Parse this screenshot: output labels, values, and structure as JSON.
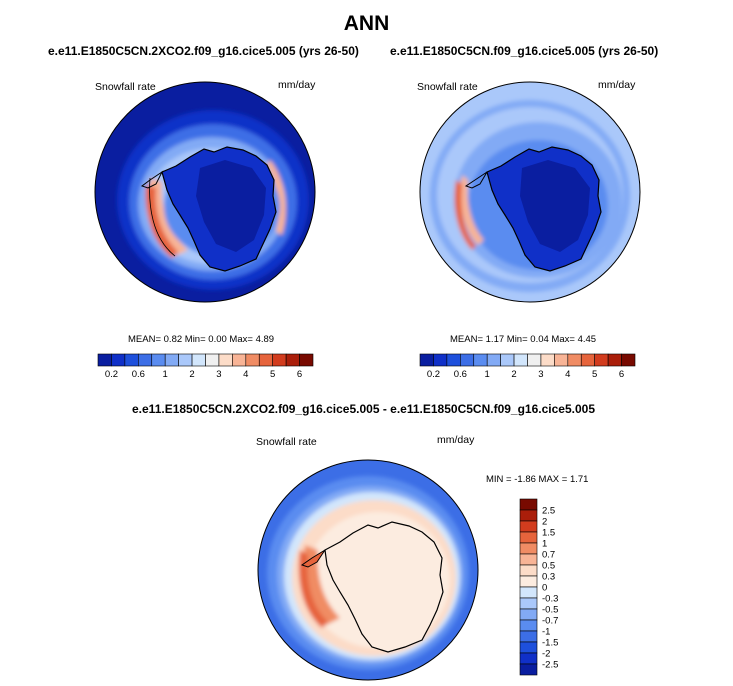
{
  "page": {
    "title": "ANN"
  },
  "chart_data": [
    {
      "type": "heatmap",
      "projection": "south polar stereographic",
      "title": "e.e11.E1850C5CN.2XCO2.f09_g16.cice5.005 (yrs 26-50)",
      "left_label": "Snowfall rate",
      "units": "mm/day",
      "mean_label": "MEAN=",
      "mean": "0.82",
      "min_label": "Min=",
      "min": "0.00",
      "max_label": "Max=",
      "max": "4.89",
      "colorbar": {
        "orientation": "horizontal",
        "levels": [
          0.2,
          0.4,
          0.6,
          0.8,
          1,
          1.5,
          2,
          2.5,
          3,
          3.5,
          4,
          4.5,
          5,
          5.5,
          6
        ],
        "tick_labels": [
          "0.2",
          "0.6",
          "1",
          "2",
          "3",
          "4",
          "5",
          "6"
        ],
        "colors": [
          "#0a1ea0",
          "#1030c8",
          "#1e50dc",
          "#3c6ee6",
          "#5a8cf0",
          "#82aaf5",
          "#aac8fa",
          "#d2e6fc",
          "#f0f0f0",
          "#fcdcc8",
          "#f8b496",
          "#f08c64",
          "#e6643c",
          "#d23c1e",
          "#aa1e0a",
          "#780a00"
        ]
      }
    },
    {
      "type": "heatmap",
      "projection": "south polar stereographic",
      "title": "e.e11.E1850C5CN.f09_g16.cice5.005 (yrs 26-50)",
      "left_label": "Snowfall rate",
      "units": "mm/day",
      "mean_label": "MEAN=",
      "mean": "1.17",
      "min_label": "Min=",
      "min": "0.04",
      "max_label": "Max=",
      "max": "4.45",
      "colorbar": {
        "orientation": "horizontal",
        "levels": [
          0.2,
          0.4,
          0.6,
          0.8,
          1,
          1.5,
          2,
          2.5,
          3,
          3.5,
          4,
          4.5,
          5,
          5.5,
          6
        ],
        "tick_labels": [
          "0.2",
          "0.6",
          "1",
          "2",
          "3",
          "4",
          "5",
          "6"
        ],
        "colors": [
          "#0a1ea0",
          "#1030c8",
          "#1e50dc",
          "#3c6ee6",
          "#5a8cf0",
          "#82aaf5",
          "#aac8fa",
          "#d2e6fc",
          "#f0f0f0",
          "#fcdcc8",
          "#f8b496",
          "#f08c64",
          "#e6643c",
          "#d23c1e",
          "#aa1e0a",
          "#780a00"
        ]
      }
    },
    {
      "type": "heatmap",
      "projection": "south polar stereographic",
      "title": "e.e11.E1850C5CN.2XCO2.f09_g16.cice5.005 - e.e11.E1850C5CN.f09_g16.cice5.005",
      "left_label": "Snowfall rate",
      "units": "mm/day",
      "min_label": "MIN =",
      "min": "-1.86",
      "max_label": "MAX =",
      "max": "1.71",
      "colorbar": {
        "orientation": "vertical",
        "tick_labels": [
          "2.5",
          "2",
          "1.5",
          "1",
          "0.7",
          "0.5",
          "0.3",
          "0",
          "-0.3",
          "-0.5",
          "-0.7",
          "-1",
          "-1.5",
          "-2",
          "-2.5"
        ],
        "colors": [
          "#780a00",
          "#aa1e0a",
          "#d23c1e",
          "#e6643c",
          "#f08c64",
          "#f8b496",
          "#fcdcc8",
          "#fcece0",
          "#d2e6fc",
          "#aac8fa",
          "#82aaf5",
          "#5a8cf0",
          "#3c6ee6",
          "#1e50dc",
          "#1030c8",
          "#0a1ea0"
        ]
      }
    }
  ]
}
